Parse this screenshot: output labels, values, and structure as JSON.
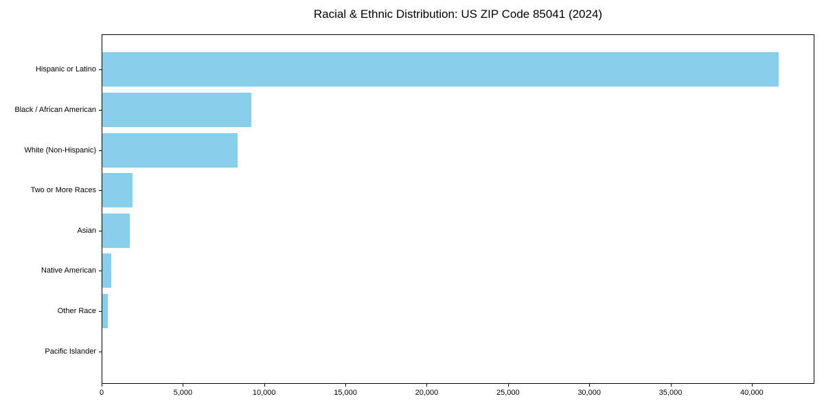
{
  "chart_data": {
    "type": "bar",
    "orientation": "horizontal",
    "title": "Racial & Ethnic Distribution: US ZIP Code 85041 (2024)",
    "xlabel": "",
    "ylabel": "",
    "categories": [
      "Hispanic or Latino",
      "Black / African American",
      "White (Non-Hispanic)",
      "Two or More Races",
      "Asian",
      "Native American",
      "Other Race",
      "Pacific Islander"
    ],
    "values": [
      41700,
      9200,
      8320,
      1860,
      1690,
      550,
      340,
      0
    ],
    "xlim": [
      0,
      43850
    ],
    "xticks": [
      0,
      5000,
      10000,
      15000,
      20000,
      25000,
      30000,
      35000,
      40000
    ],
    "xtick_labels": [
      "0",
      "5,000",
      "10,000",
      "15,000",
      "20,000",
      "25,000",
      "30,000",
      "35,000",
      "40,000"
    ],
    "bar_color": "#87CEEB",
    "frame_color": "#000000",
    "text_color": "#000000",
    "grid": false,
    "legend": null
  }
}
